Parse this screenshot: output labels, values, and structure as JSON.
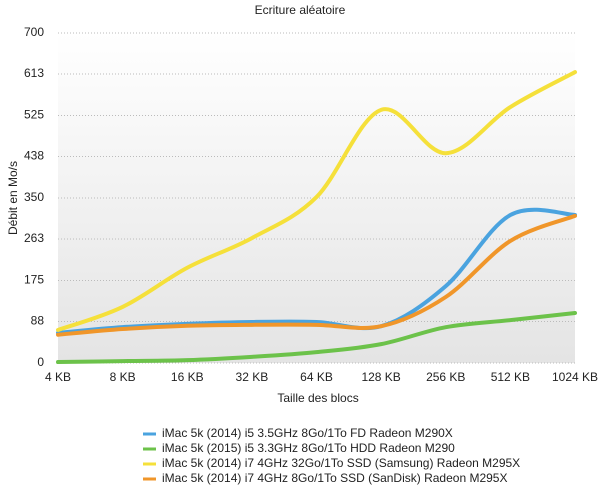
{
  "chart_data": {
    "type": "line",
    "title": "Ecriture aléatoire",
    "x_label": "Taille des blocs",
    "y_label": "Débit en Mo/s",
    "categories": [
      "4 KB",
      "8 KB",
      "16 KB",
      "32 KB",
      "64 KB",
      "128 KB",
      "256 KB",
      "512 KB",
      "1024 KB"
    ],
    "series": [
      {
        "name": "iMac 5k (2014) i5 3.5GHz 8Go/1To FD Radeon M290X",
        "color": "#4aa3df",
        "values": [
          64,
          76,
          83,
          87,
          87,
          78,
          163,
          314,
          314
        ]
      },
      {
        "name": "iMac 5k (2015) i5 3.3GHz 8Go/1To HDD Radeon M290",
        "color": "#6cc24a",
        "values": [
          2,
          4,
          6,
          13,
          23,
          40,
          76,
          91,
          106
        ]
      },
      {
        "name": "iMac 5k (2014) i7 4GHz 32Go/1To SSD (Samsung) Radeon M295X",
        "color": "#f5e03a",
        "values": [
          70,
          119,
          202,
          265,
          352,
          537,
          445,
          543,
          617
        ]
      },
      {
        "name": "iMac 5k (2014) i7 4GHz 8Go/1To SSD (SanDisk) Radeon M295X",
        "color": "#f0962a",
        "values": [
          60,
          72,
          79,
          81,
          81,
          78,
          140,
          259,
          312
        ]
      }
    ],
    "ylim": [
      0,
      700
    ],
    "yticks": [
      0,
      88,
      175,
      263,
      350,
      438,
      525,
      613,
      700
    ],
    "grid": true
  }
}
